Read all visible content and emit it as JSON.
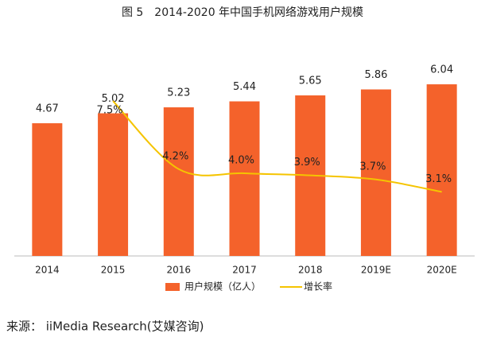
{
  "chart_data": {
    "type": "bar",
    "title": "图 5　2014-2020 年中国手机网络游戏用户规模",
    "categories": [
      "2014",
      "2015",
      "2016",
      "2017",
      "2018",
      "2019E",
      "2020E"
    ],
    "series": [
      {
        "name": "用户规模（亿人）",
        "type": "bar",
        "color": "#f4622b",
        "values": [
          4.67,
          5.02,
          5.23,
          5.44,
          5.65,
          5.86,
          6.04
        ]
      },
      {
        "name": "增长率",
        "type": "line",
        "axis": "y2",
        "color": "#f5c400",
        "values": [
          null,
          7.5,
          4.2,
          4.0,
          3.9,
          3.7,
          3.1
        ],
        "value_labels": [
          null,
          "7.5%",
          "4.2%",
          "4.0%",
          "3.9%",
          "3.7%",
          "3.1%"
        ]
      }
    ],
    "ylim": [
      0,
      8
    ],
    "y2lim": [
      0,
      11
    ],
    "legend": "bottom",
    "source": "来源：  iiMedia Research(艾媒咨询)"
  }
}
